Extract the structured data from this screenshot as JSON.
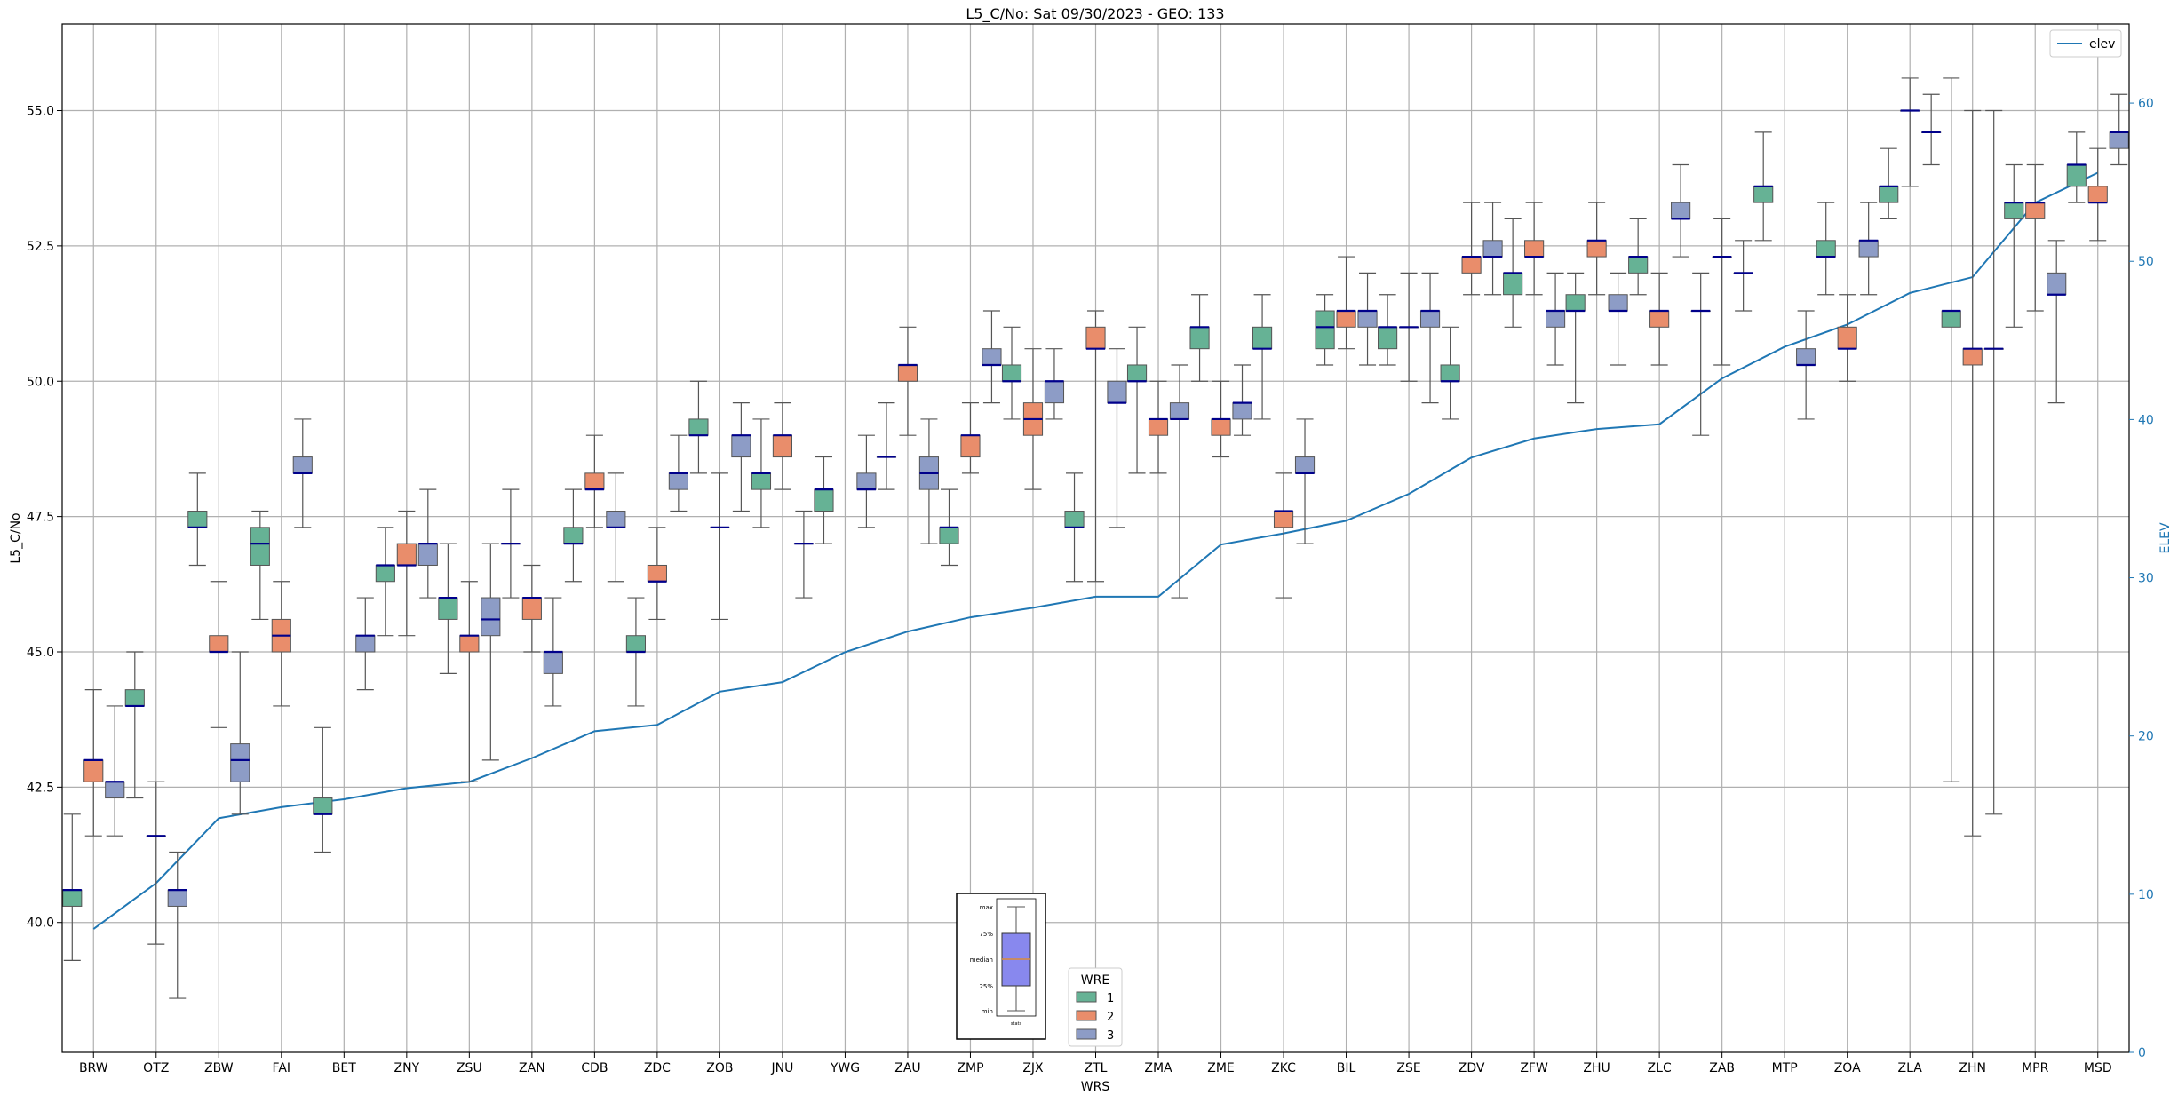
{
  "chart_data": {
    "type": "box",
    "title": "L5_C/No: Sat 09/30/2023 - GEO: 133",
    "xlabel": "WRS",
    "ylabel": "L5_C/No",
    "y2label": "ELEV",
    "ylim": [
      37.6,
      56.6
    ],
    "y2lim": [
      0,
      65
    ],
    "yticks": [
      "40.0",
      "42.5",
      "45.0",
      "47.5",
      "50.0",
      "52.5",
      "55.0"
    ],
    "y2ticks": [
      "0",
      "10",
      "20",
      "30",
      "40",
      "50",
      "60"
    ],
    "grid": true,
    "categories": [
      "BRW",
      "OTZ",
      "ZBW",
      "FAI",
      "BET",
      "ZNY",
      "ZSU",
      "ZAN",
      "CDB",
      "ZDC",
      "ZOB",
      "JNU",
      "YWG",
      "ZAU",
      "ZMP",
      "ZJX",
      "ZTL",
      "ZMA",
      "ZME",
      "ZKC",
      "BIL",
      "ZSE",
      "ZDV",
      "ZFW",
      "ZHU",
      "ZLC",
      "ZAB",
      "MTP",
      "ZOA",
      "ZLA",
      "ZHN",
      "MPR",
      "MSD"
    ],
    "hue_legend": {
      "title": "WRE",
      "entries": [
        "1",
        "2",
        "3"
      ]
    },
    "colors": {
      "wre1": "#66b295",
      "wre2": "#e98d6b",
      "wre3": "#8d9cc6",
      "median": "#00008b",
      "elev": "#1f77b4",
      "whisker": "#555555"
    },
    "line_legend": "elev",
    "boxes": [
      {
        "x": "BRW",
        "wre": 1,
        "min": 39.3,
        "q1": 40.3,
        "med": 40.6,
        "q3": 40.6,
        "max": 42.0
      },
      {
        "x": "BRW",
        "wre": 2,
        "min": 41.6,
        "q1": 42.6,
        "med": 43.0,
        "q3": 43.0,
        "max": 44.3
      },
      {
        "x": "BRW",
        "wre": 3,
        "min": 41.6,
        "q1": 42.3,
        "med": 42.6,
        "q3": 42.6,
        "max": 44.0
      },
      {
        "x": "OTZ",
        "wre": 1,
        "min": 42.3,
        "q1": 44.0,
        "med": 44.0,
        "q3": 44.3,
        "max": 45.0
      },
      {
        "x": "OTZ",
        "wre": 2,
        "min": 39.6,
        "q1": 41.6,
        "med": 41.6,
        "q3": 41.6,
        "max": 42.6
      },
      {
        "x": "OTZ",
        "wre": 3,
        "min": 38.6,
        "q1": 40.3,
        "med": 40.6,
        "q3": 40.6,
        "max": 41.3
      },
      {
        "x": "ZBW",
        "wre": 1,
        "min": 46.6,
        "q1": 47.3,
        "med": 47.3,
        "q3": 47.6,
        "max": 48.3
      },
      {
        "x": "ZBW",
        "wre": 2,
        "min": 43.6,
        "q1": 45.0,
        "med": 45.0,
        "q3": 45.3,
        "max": 46.3
      },
      {
        "x": "ZBW",
        "wre": 3,
        "min": 42.0,
        "q1": 42.6,
        "med": 43.0,
        "q3": 43.3,
        "max": 45.0
      },
      {
        "x": "FAI",
        "wre": 1,
        "min": 45.6,
        "q1": 46.6,
        "med": 47.0,
        "q3": 47.3,
        "max": 47.6
      },
      {
        "x": "FAI",
        "wre": 2,
        "min": 44.0,
        "q1": 45.0,
        "med": 45.3,
        "q3": 45.6,
        "max": 46.3
      },
      {
        "x": "FAI",
        "wre": 3,
        "min": 47.3,
        "q1": 48.3,
        "med": 48.3,
        "q3": 48.6,
        "max": 49.3
      },
      {
        "x": "BET",
        "wre": 1,
        "min": 41.3,
        "q1": 42.0,
        "med": 42.0,
        "q3": 42.3,
        "max": 43.6
      },
      {
        "x": "BET",
        "wre": 3,
        "min": 44.3,
        "q1": 45.0,
        "med": 45.3,
        "q3": 45.3,
        "max": 46.0
      },
      {
        "x": "ZNY",
        "wre": 1,
        "min": 45.3,
        "q1": 46.3,
        "med": 46.6,
        "q3": 46.6,
        "max": 47.3
      },
      {
        "x": "ZNY",
        "wre": 2,
        "min": 45.3,
        "q1": 46.6,
        "med": 46.6,
        "q3": 47.0,
        "max": 47.6
      },
      {
        "x": "ZNY",
        "wre": 3,
        "min": 46.0,
        "q1": 46.6,
        "med": 47.0,
        "q3": 47.0,
        "max": 48.0
      },
      {
        "x": "ZSU",
        "wre": 1,
        "min": 44.6,
        "q1": 45.6,
        "med": 46.0,
        "q3": 46.0,
        "max": 47.0
      },
      {
        "x": "ZSU",
        "wre": 2,
        "min": 42.6,
        "q1": 45.0,
        "med": 45.3,
        "q3": 45.3,
        "max": 46.3
      },
      {
        "x": "ZSU",
        "wre": 3,
        "min": 43.0,
        "q1": 45.3,
        "med": 45.6,
        "q3": 46.0,
        "max": 47.0
      },
      {
        "x": "ZAN",
        "wre": 1,
        "min": 46.0,
        "q1": 47.0,
        "med": 47.0,
        "q3": 47.0,
        "max": 48.0
      },
      {
        "x": "ZAN",
        "wre": 2,
        "min": 45.0,
        "q1": 45.6,
        "med": 46.0,
        "q3": 46.0,
        "max": 46.6
      },
      {
        "x": "ZAN",
        "wre": 3,
        "min": 44.0,
        "q1": 44.6,
        "med": 45.0,
        "q3": 45.0,
        "max": 46.0
      },
      {
        "x": "CDB",
        "wre": 1,
        "min": 46.3,
        "q1": 47.0,
        "med": 47.0,
        "q3": 47.3,
        "max": 48.0
      },
      {
        "x": "CDB",
        "wre": 2,
        "min": 47.3,
        "q1": 48.0,
        "med": 48.0,
        "q3": 48.3,
        "max": 49.0
      },
      {
        "x": "CDB",
        "wre": 3,
        "min": 46.3,
        "q1": 47.3,
        "med": 47.3,
        "q3": 47.6,
        "max": 48.3
      },
      {
        "x": "ZDC",
        "wre": 1,
        "min": 44.0,
        "q1": 45.0,
        "med": 45.0,
        "q3": 45.3,
        "max": 46.0
      },
      {
        "x": "ZDC",
        "wre": 2,
        "min": 45.6,
        "q1": 46.3,
        "med": 46.3,
        "q3": 46.6,
        "max": 47.3
      },
      {
        "x": "ZDC",
        "wre": 3,
        "min": 47.6,
        "q1": 48.0,
        "med": 48.3,
        "q3": 48.3,
        "max": 49.0
      },
      {
        "x": "ZOB",
        "wre": 1,
        "min": 48.3,
        "q1": 49.0,
        "med": 49.0,
        "q3": 49.3,
        "max": 50.0
      },
      {
        "x": "ZOB",
        "wre": 2,
        "min": 45.6,
        "q1": 47.3,
        "med": 47.3,
        "q3": 47.3,
        "max": 48.3
      },
      {
        "x": "ZOB",
        "wre": 3,
        "min": 47.6,
        "q1": 48.6,
        "med": 49.0,
        "q3": 49.0,
        "max": 49.6
      },
      {
        "x": "JNU",
        "wre": 1,
        "min": 47.3,
        "q1": 48.0,
        "med": 48.3,
        "q3": 48.3,
        "max": 49.3
      },
      {
        "x": "JNU",
        "wre": 2,
        "min": 48.0,
        "q1": 48.6,
        "med": 49.0,
        "q3": 49.0,
        "max": 49.6
      },
      {
        "x": "JNU",
        "wre": 3,
        "min": 46.0,
        "q1": 47.0,
        "med": 47.0,
        "q3": 47.0,
        "max": 47.6
      },
      {
        "x": "YWG",
        "wre": 1,
        "min": 47.0,
        "q1": 47.6,
        "med": 48.0,
        "q3": 48.0,
        "max": 48.6
      },
      {
        "x": "YWG",
        "wre": 3,
        "min": 47.3,
        "q1": 48.0,
        "med": 48.0,
        "q3": 48.3,
        "max": 49.0
      },
      {
        "x": "ZAU",
        "wre": 1,
        "min": 48.0,
        "q1": 48.6,
        "med": 48.6,
        "q3": 48.6,
        "max": 49.6
      },
      {
        "x": "ZAU",
        "wre": 2,
        "min": 49.0,
        "q1": 50.0,
        "med": 50.3,
        "q3": 50.3,
        "max": 51.0
      },
      {
        "x": "ZAU",
        "wre": 3,
        "min": 47.0,
        "q1": 48.0,
        "med": 48.3,
        "q3": 48.6,
        "max": 49.3
      },
      {
        "x": "ZMP",
        "wre": 1,
        "min": 46.6,
        "q1": 47.0,
        "med": 47.3,
        "q3": 47.3,
        "max": 48.0
      },
      {
        "x": "ZMP",
        "wre": 2,
        "min": 48.3,
        "q1": 48.6,
        "med": 49.0,
        "q3": 49.0,
        "max": 49.6
      },
      {
        "x": "ZMP",
        "wre": 3,
        "min": 49.6,
        "q1": 50.3,
        "med": 50.3,
        "q3": 50.6,
        "max": 51.3
      },
      {
        "x": "ZJX",
        "wre": 1,
        "min": 49.3,
        "q1": 50.0,
        "med": 50.0,
        "q3": 50.3,
        "max": 51.0
      },
      {
        "x": "ZJX",
        "wre": 2,
        "min": 48.0,
        "q1": 49.0,
        "med": 49.3,
        "q3": 49.6,
        "max": 50.6
      },
      {
        "x": "ZJX",
        "wre": 3,
        "min": 49.3,
        "q1": 49.6,
        "med": 50.0,
        "q3": 50.0,
        "max": 50.6
      },
      {
        "x": "ZTL",
        "wre": 1,
        "min": 46.3,
        "q1": 47.3,
        "med": 47.3,
        "q3": 47.6,
        "max": 48.3
      },
      {
        "x": "ZTL",
        "wre": 2,
        "min": 46.3,
        "q1": 50.6,
        "med": 50.6,
        "q3": 51.0,
        "max": 51.3
      },
      {
        "x": "ZTL",
        "wre": 3,
        "min": 47.3,
        "q1": 49.6,
        "med": 49.6,
        "q3": 50.0,
        "max": 50.6
      },
      {
        "x": "ZMA",
        "wre": 1,
        "min": 48.3,
        "q1": 50.0,
        "med": 50.0,
        "q3": 50.3,
        "max": 51.0
      },
      {
        "x": "ZMA",
        "wre": 2,
        "min": 48.3,
        "q1": 49.0,
        "med": 49.3,
        "q3": 49.3,
        "max": 50.0
      },
      {
        "x": "ZMA",
        "wre": 3,
        "min": 46.0,
        "q1": 49.3,
        "med": 49.3,
        "q3": 49.6,
        "max": 50.3
      },
      {
        "x": "ZME",
        "wre": 1,
        "min": 50.0,
        "q1": 50.6,
        "med": 51.0,
        "q3": 51.0,
        "max": 51.6
      },
      {
        "x": "ZME",
        "wre": 2,
        "min": 48.6,
        "q1": 49.0,
        "med": 49.3,
        "q3": 49.3,
        "max": 50.0
      },
      {
        "x": "ZME",
        "wre": 3,
        "min": 49.0,
        "q1": 49.3,
        "med": 49.6,
        "q3": 49.6,
        "max": 50.3
      },
      {
        "x": "ZKC",
        "wre": 1,
        "min": 49.3,
        "q1": 50.6,
        "med": 50.6,
        "q3": 51.0,
        "max": 51.6
      },
      {
        "x": "ZKC",
        "wre": 2,
        "min": 46.0,
        "q1": 47.3,
        "med": 47.6,
        "q3": 47.6,
        "max": 48.3
      },
      {
        "x": "ZKC",
        "wre": 3,
        "min": 47.0,
        "q1": 48.3,
        "med": 48.3,
        "q3": 48.6,
        "max": 49.3
      },
      {
        "x": "BIL",
        "wre": 1,
        "min": 50.3,
        "q1": 50.6,
        "med": 51.0,
        "q3": 51.3,
        "max": 51.6
      },
      {
        "x": "BIL",
        "wre": 2,
        "min": 50.6,
        "q1": 51.0,
        "med": 51.3,
        "q3": 51.3,
        "max": 52.3
      },
      {
        "x": "BIL",
        "wre": 3,
        "min": 50.3,
        "q1": 51.0,
        "med": 51.3,
        "q3": 51.3,
        "max": 52.0
      },
      {
        "x": "ZSE",
        "wre": 1,
        "min": 50.3,
        "q1": 50.6,
        "med": 51.0,
        "q3": 51.0,
        "max": 51.6
      },
      {
        "x": "ZSE",
        "wre": 2,
        "min": 50.0,
        "q1": 51.0,
        "med": 51.0,
        "q3": 51.0,
        "max": 52.0
      },
      {
        "x": "ZSE",
        "wre": 3,
        "min": 49.6,
        "q1": 51.0,
        "med": 51.3,
        "q3": 51.3,
        "max": 52.0
      },
      {
        "x": "ZDV",
        "wre": 1,
        "min": 49.3,
        "q1": 50.0,
        "med": 50.0,
        "q3": 50.3,
        "max": 51.0
      },
      {
        "x": "ZDV",
        "wre": 2,
        "min": 51.6,
        "q1": 52.0,
        "med": 52.3,
        "q3": 52.3,
        "max": 53.3
      },
      {
        "x": "ZDV",
        "wre": 3,
        "min": 51.6,
        "q1": 52.3,
        "med": 52.3,
        "q3": 52.6,
        "max": 53.3
      },
      {
        "x": "ZFW",
        "wre": 1,
        "min": 51.0,
        "q1": 51.6,
        "med": 52.0,
        "q3": 52.0,
        "max": 53.0
      },
      {
        "x": "ZFW",
        "wre": 2,
        "min": 51.6,
        "q1": 52.3,
        "med": 52.3,
        "q3": 52.6,
        "max": 53.3
      },
      {
        "x": "ZFW",
        "wre": 3,
        "min": 50.3,
        "q1": 51.0,
        "med": 51.3,
        "q3": 51.3,
        "max": 52.0
      },
      {
        "x": "ZHU",
        "wre": 1,
        "min": 49.6,
        "q1": 51.3,
        "med": 51.3,
        "q3": 51.6,
        "max": 52.0
      },
      {
        "x": "ZHU",
        "wre": 2,
        "min": 51.6,
        "q1": 52.3,
        "med": 52.6,
        "q3": 52.6,
        "max": 53.3
      },
      {
        "x": "ZHU",
        "wre": 3,
        "min": 50.3,
        "q1": 51.3,
        "med": 51.3,
        "q3": 51.6,
        "max": 52.0
      },
      {
        "x": "ZLC",
        "wre": 1,
        "min": 51.6,
        "q1": 52.0,
        "med": 52.3,
        "q3": 52.3,
        "max": 53.0
      },
      {
        "x": "ZLC",
        "wre": 2,
        "min": 50.3,
        "q1": 51.0,
        "med": 51.3,
        "q3": 51.3,
        "max": 52.0
      },
      {
        "x": "ZLC",
        "wre": 3,
        "min": 52.3,
        "q1": 53.0,
        "med": 53.0,
        "q3": 53.3,
        "max": 54.0
      },
      {
        "x": "ZAB",
        "wre": 1,
        "min": 49.0,
        "q1": 51.3,
        "med": 51.3,
        "q3": 51.3,
        "max": 52.0
      },
      {
        "x": "ZAB",
        "wre": 2,
        "min": 50.3,
        "q1": 52.3,
        "med": 52.3,
        "q3": 52.3,
        "max": 53.0
      },
      {
        "x": "ZAB",
        "wre": 3,
        "min": 51.3,
        "q1": 52.0,
        "med": 52.0,
        "q3": 52.0,
        "max": 52.6
      },
      {
        "x": "MTP",
        "wre": 1,
        "min": 52.6,
        "q1": 53.3,
        "med": 53.6,
        "q3": 53.6,
        "max": 54.6
      },
      {
        "x": "MTP",
        "wre": 3,
        "min": 49.3,
        "q1": 50.3,
        "med": 50.3,
        "q3": 50.6,
        "max": 51.3
      },
      {
        "x": "ZOA",
        "wre": 1,
        "min": 51.6,
        "q1": 52.3,
        "med": 52.3,
        "q3": 52.6,
        "max": 53.3
      },
      {
        "x": "ZOA",
        "wre": 2,
        "min": 50.0,
        "q1": 50.6,
        "med": 50.6,
        "q3": 51.0,
        "max": 51.6
      },
      {
        "x": "ZOA",
        "wre": 3,
        "min": 51.6,
        "q1": 52.3,
        "med": 52.6,
        "q3": 52.6,
        "max": 53.3
      },
      {
        "x": "ZLA",
        "wre": 1,
        "min": 53.0,
        "q1": 53.3,
        "med": 53.6,
        "q3": 53.6,
        "max": 54.3
      },
      {
        "x": "ZLA",
        "wre": 2,
        "min": 53.6,
        "q1": 55.0,
        "med": 55.0,
        "q3": 55.0,
        "max": 55.6
      },
      {
        "x": "ZLA",
        "wre": 3,
        "min": 54.0,
        "q1": 54.6,
        "med": 54.6,
        "q3": 54.6,
        "max": 55.3
      },
      {
        "x": "ZHN",
        "wre": 1,
        "min": 42.6,
        "q1": 51.0,
        "med": 51.3,
        "q3": 51.3,
        "max": 55.6
      },
      {
        "x": "ZHN",
        "wre": 2,
        "min": 41.6,
        "q1": 50.3,
        "med": 50.6,
        "q3": 50.6,
        "max": 55.0
      },
      {
        "x": "ZHN",
        "wre": 3,
        "min": 42.0,
        "q1": 50.6,
        "med": 50.6,
        "q3": 50.6,
        "max": 55.0
      },
      {
        "x": "MPR",
        "wre": 1,
        "min": 51.0,
        "q1": 53.0,
        "med": 53.3,
        "q3": 53.3,
        "max": 54.0
      },
      {
        "x": "MPR",
        "wre": 2,
        "min": 51.3,
        "q1": 53.0,
        "med": 53.3,
        "q3": 53.3,
        "max": 54.0
      },
      {
        "x": "MPR",
        "wre": 3,
        "min": 49.6,
        "q1": 51.6,
        "med": 51.6,
        "q3": 52.0,
        "max": 52.6
      },
      {
        "x": "MSD",
        "wre": 1,
        "min": 53.3,
        "q1": 53.6,
        "med": 54.0,
        "q3": 54.0,
        "max": 54.6
      },
      {
        "x": "MSD",
        "wre": 2,
        "min": 52.6,
        "q1": 53.3,
        "med": 53.3,
        "q3": 53.6,
        "max": 54.3
      },
      {
        "x": "MSD",
        "wre": 3,
        "min": 54.0,
        "q1": 54.3,
        "med": 54.6,
        "q3": 54.6,
        "max": 55.3
      }
    ],
    "elev_series": {
      "name": "elev",
      "x": [
        "BRW",
        "OTZ",
        "ZBW",
        "FAI",
        "BET",
        "ZNY",
        "ZSU",
        "ZAN",
        "CDB",
        "ZDC",
        "ZOB",
        "JNU",
        "YWG",
        "ZAU",
        "ZMP",
        "ZJX",
        "ZTL",
        "ZMA",
        "ZME",
        "ZKC",
        "BIL",
        "ZSE",
        "ZDV",
        "ZFW",
        "ZHU",
        "ZLC",
        "ZAB",
        "MTP",
        "ZOA",
        "ZLA",
        "ZHN",
        "MPR",
        "MSD"
      ],
      "values": [
        7.8,
        10.7,
        14.8,
        15.5,
        16.0,
        16.7,
        17.1,
        18.6,
        20.3,
        20.7,
        22.8,
        23.4,
        25.3,
        26.6,
        27.5,
        28.1,
        28.8,
        28.8,
        32.1,
        32.8,
        33.6,
        35.3,
        37.6,
        38.8,
        39.4,
        39.7,
        42.6,
        44.6,
        46.0,
        48.0,
        49.0,
        53.7,
        55.6
      ]
    },
    "inset": {
      "labels": [
        "max",
        "75%",
        "median",
        "25%",
        "min"
      ],
      "xlabel": "stats"
    }
  }
}
